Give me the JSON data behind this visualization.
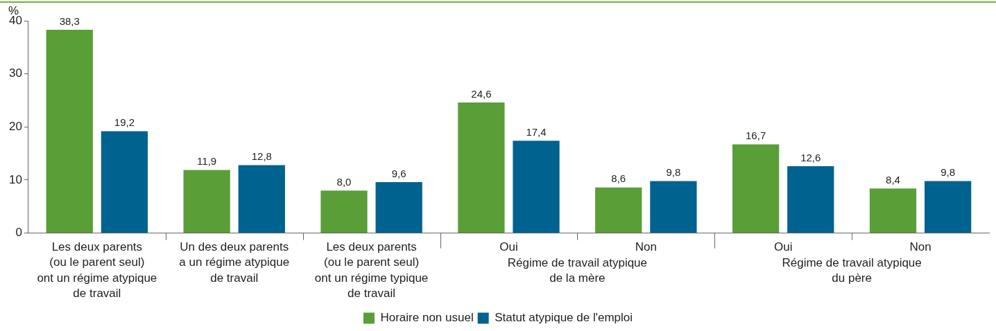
{
  "chart_data": {
    "type": "bar",
    "categories": [
      "Les deux parents\n(ou le parent seul)\nont un régime atypique\nde travail",
      "Un des deux parents\na un régime atypique\nde travail",
      "Les deux parents\n(ou le parent seul)\nont un régime typique\nde travail",
      "Oui",
      "Non",
      "Oui",
      "Non"
    ],
    "series": [
      {
        "name": "Horaire non usuel",
        "color": "#5a9e37",
        "values": [
          38.3,
          11.9,
          8.0,
          24.6,
          8.6,
          16.7,
          8.4
        ],
        "value_labels": [
          "38,3",
          "11,9",
          "8,0",
          "24,6",
          "8,6",
          "16,7",
          "8,4"
        ]
      },
      {
        "name": "Statut atypique de l'emploi",
        "color": "#00628f",
        "values": [
          19.2,
          12.8,
          9.6,
          17.4,
          9.8,
          12.6,
          9.8
        ],
        "value_labels": [
          "19,2",
          "12,8",
          "9,6",
          "17,4",
          "9,8",
          "12,6",
          "9,8"
        ]
      }
    ],
    "ylabel": "%",
    "ylim": [
      0,
      40
    ],
    "yticks": [
      0,
      10,
      20,
      30,
      40
    ],
    "grid": false,
    "legend": "bottom",
    "annotations": [
      "Régime de travail atypique\nde la mère",
      "Régime de travail atypique\ndu père"
    ]
  }
}
